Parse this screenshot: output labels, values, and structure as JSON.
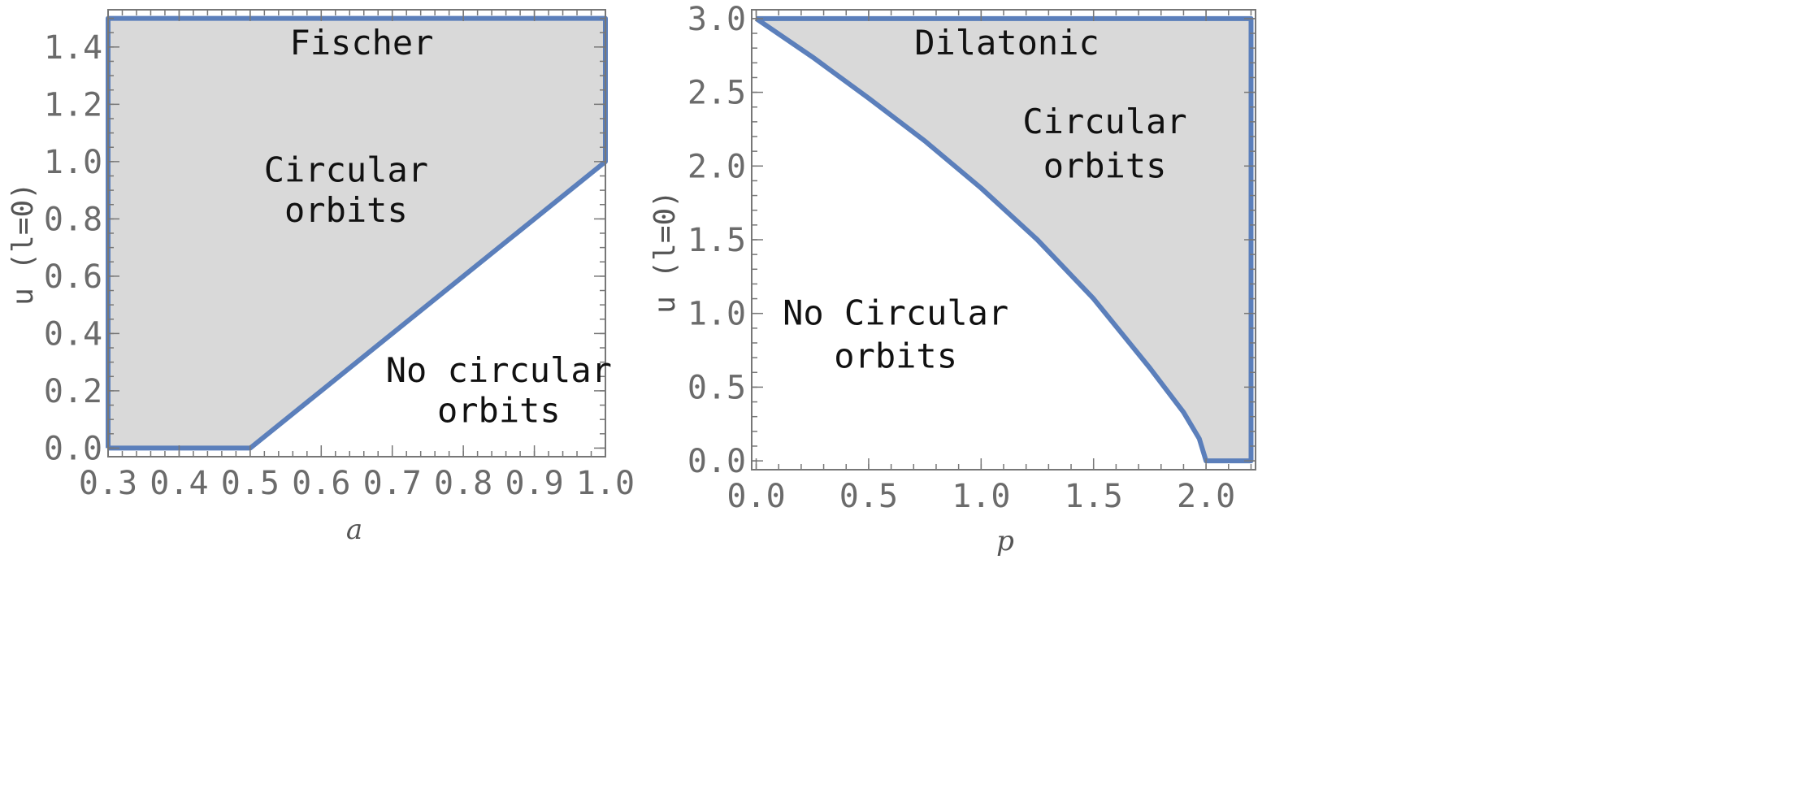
{
  "chart_data": [
    {
      "type": "area",
      "title": "Fischer",
      "xlabel": "a",
      "ylabel": "u  (l=0)",
      "xlim": [
        0.3,
        1.0
      ],
      "ylim": [
        0.0,
        1.5
      ],
      "xticks": [
        "0.3",
        "0.4",
        "0.5",
        "0.6",
        "0.7",
        "0.8",
        "0.9",
        "1.0"
      ],
      "yticks": [
        "0.0",
        "0.2",
        "0.4",
        "0.6",
        "0.8",
        "1.0",
        "1.2",
        "1.4"
      ],
      "grid": false,
      "fill_color": "#d9d9d9",
      "line_color": "#5b7fbb",
      "annotations": [
        {
          "text": "Circular",
          "x": 0.635,
          "y": 0.97
        },
        {
          "text": "orbits",
          "x": 0.635,
          "y": 0.83
        },
        {
          "text": "No circular",
          "x": 0.85,
          "y": 0.27
        },
        {
          "text": "orbits",
          "x": 0.85,
          "y": 0.13
        }
      ],
      "boundary": [
        {
          "x": 0.3,
          "y": 0.0
        },
        {
          "x": 0.5,
          "y": 0.0
        },
        {
          "x": 0.6,
          "y": 0.2
        },
        {
          "x": 0.7,
          "y": 0.4
        },
        {
          "x": 0.8,
          "y": 0.6
        },
        {
          "x": 0.9,
          "y": 0.8
        },
        {
          "x": 1.0,
          "y": 1.0
        },
        {
          "x": 1.0,
          "y": 1.5
        },
        {
          "x": 0.3,
          "y": 1.5
        }
      ]
    },
    {
      "type": "area",
      "title": "Dilatonic",
      "xlabel": "p",
      "ylabel": "u  (l=0)",
      "xlim": [
        0.0,
        2.2
      ],
      "ylim": [
        0.0,
        3.0
      ],
      "xticks": [
        "0.0",
        "0.5",
        "1.0",
        "1.5",
        "2.0"
      ],
      "yticks": [
        "0.0",
        "0.5",
        "1.0",
        "1.5",
        "2.0",
        "2.5",
        "3.0"
      ],
      "grid": false,
      "fill_color": "#d9d9d9",
      "line_color": "#5b7fbb",
      "annotations": [
        {
          "text": "Circular",
          "x": 1.55,
          "y": 2.3
        },
        {
          "text": "orbits",
          "x": 1.55,
          "y": 2.0
        },
        {
          "text": "No Circular",
          "x": 0.62,
          "y": 1.0
        },
        {
          "text": "orbits",
          "x": 0.62,
          "y": 0.71
        }
      ],
      "boundary": [
        {
          "x": 0.0,
          "y": 3.0
        },
        {
          "x": 0.25,
          "y": 2.74
        },
        {
          "x": 0.5,
          "y": 2.46
        },
        {
          "x": 0.75,
          "y": 2.17
        },
        {
          "x": 1.0,
          "y": 1.85
        },
        {
          "x": 1.25,
          "y": 1.5
        },
        {
          "x": 1.5,
          "y": 1.1
        },
        {
          "x": 1.75,
          "y": 0.63
        },
        {
          "x": 1.9,
          "y": 0.33
        },
        {
          "x": 1.97,
          "y": 0.15
        },
        {
          "x": 2.0,
          "y": 0.0
        },
        {
          "x": 2.2,
          "y": 0.0
        },
        {
          "x": 2.2,
          "y": 3.0
        }
      ]
    }
  ]
}
